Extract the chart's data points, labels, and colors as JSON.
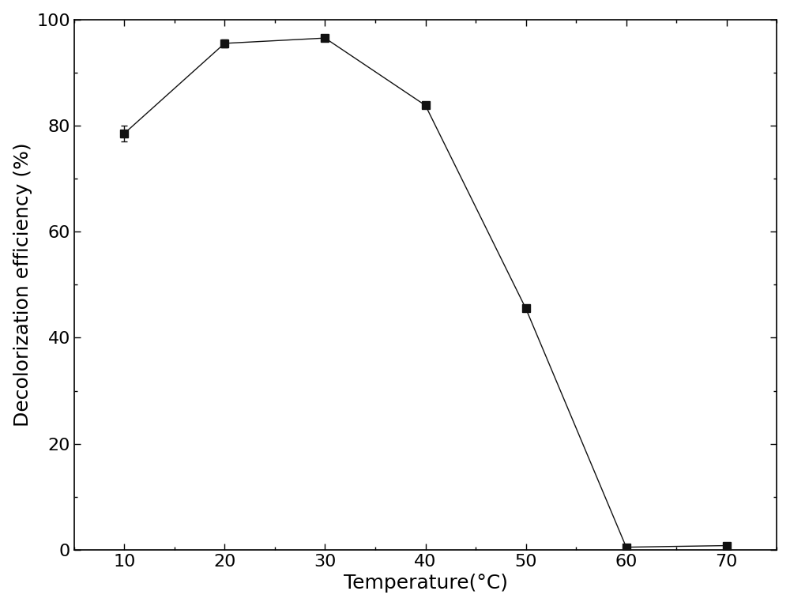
{
  "x": [
    10,
    20,
    30,
    40,
    50,
    60,
    70
  ],
  "y": [
    78.5,
    95.5,
    96.5,
    83.8,
    45.5,
    0.5,
    0.8
  ],
  "yerr": [
    1.5,
    0.8,
    0.5,
    0.5,
    0.5,
    0.3,
    0.3
  ],
  "xlabel": "Temperature(°C)",
  "ylabel": "Decolorization efficiency (%)",
  "xlim": [
    5,
    75
  ],
  "ylim": [
    0,
    100
  ],
  "xticks": [
    10,
    20,
    30,
    40,
    50,
    60,
    70
  ],
  "yticks": [
    0,
    20,
    40,
    60,
    80,
    100
  ],
  "marker": "s",
  "marker_size": 7,
  "marker_color": "#111111",
  "line_color": "#555555",
  "line_width": 1.0,
  "background_color": "#ffffff",
  "axes_background_color": "#ffffff",
  "capsize": 3,
  "xlabel_fontsize": 18,
  "ylabel_fontsize": 18,
  "tick_fontsize": 16
}
